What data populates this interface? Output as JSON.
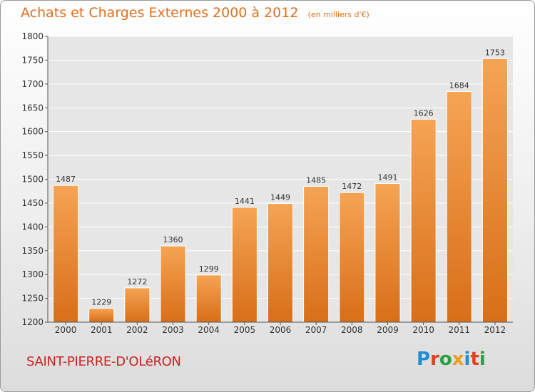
{
  "chart_data": {
    "type": "bar",
    "title": "Achats et Charges Externes 2000 à 2012",
    "subtitle": "(en milliers d'€)",
    "categories": [
      "2000",
      "2001",
      "2002",
      "2003",
      "2004",
      "2005",
      "2006",
      "2007",
      "2008",
      "2009",
      "2010",
      "2011",
      "2012"
    ],
    "series": [
      {
        "values": [
          1487,
          1229,
          1272,
          1360,
          1299,
          1441,
          1449,
          1485,
          1472,
          1491,
          1626,
          1684,
          1753
        ]
      }
    ],
    "xlabel": "",
    "ylabel": "",
    "ylim": [
      1200,
      1800
    ],
    "yticks": [
      1200,
      1250,
      1300,
      1350,
      1400,
      1450,
      1500,
      1550,
      1600,
      1650,
      1700,
      1750,
      1800
    ],
    "grid": true,
    "bar_color": "#f08a30"
  },
  "footer": {
    "commune": "SAINT-PIERRE-D'OLéRON",
    "logo_letters": [
      "P",
      "r",
      "o",
      "x",
      "i",
      "t",
      "i"
    ],
    "logo_colors": [
      "#1e8fd0",
      "#e04020",
      "#2aa040",
      "#e8a020",
      "#1e8fd0",
      "#e04020",
      "#2aa040"
    ]
  }
}
